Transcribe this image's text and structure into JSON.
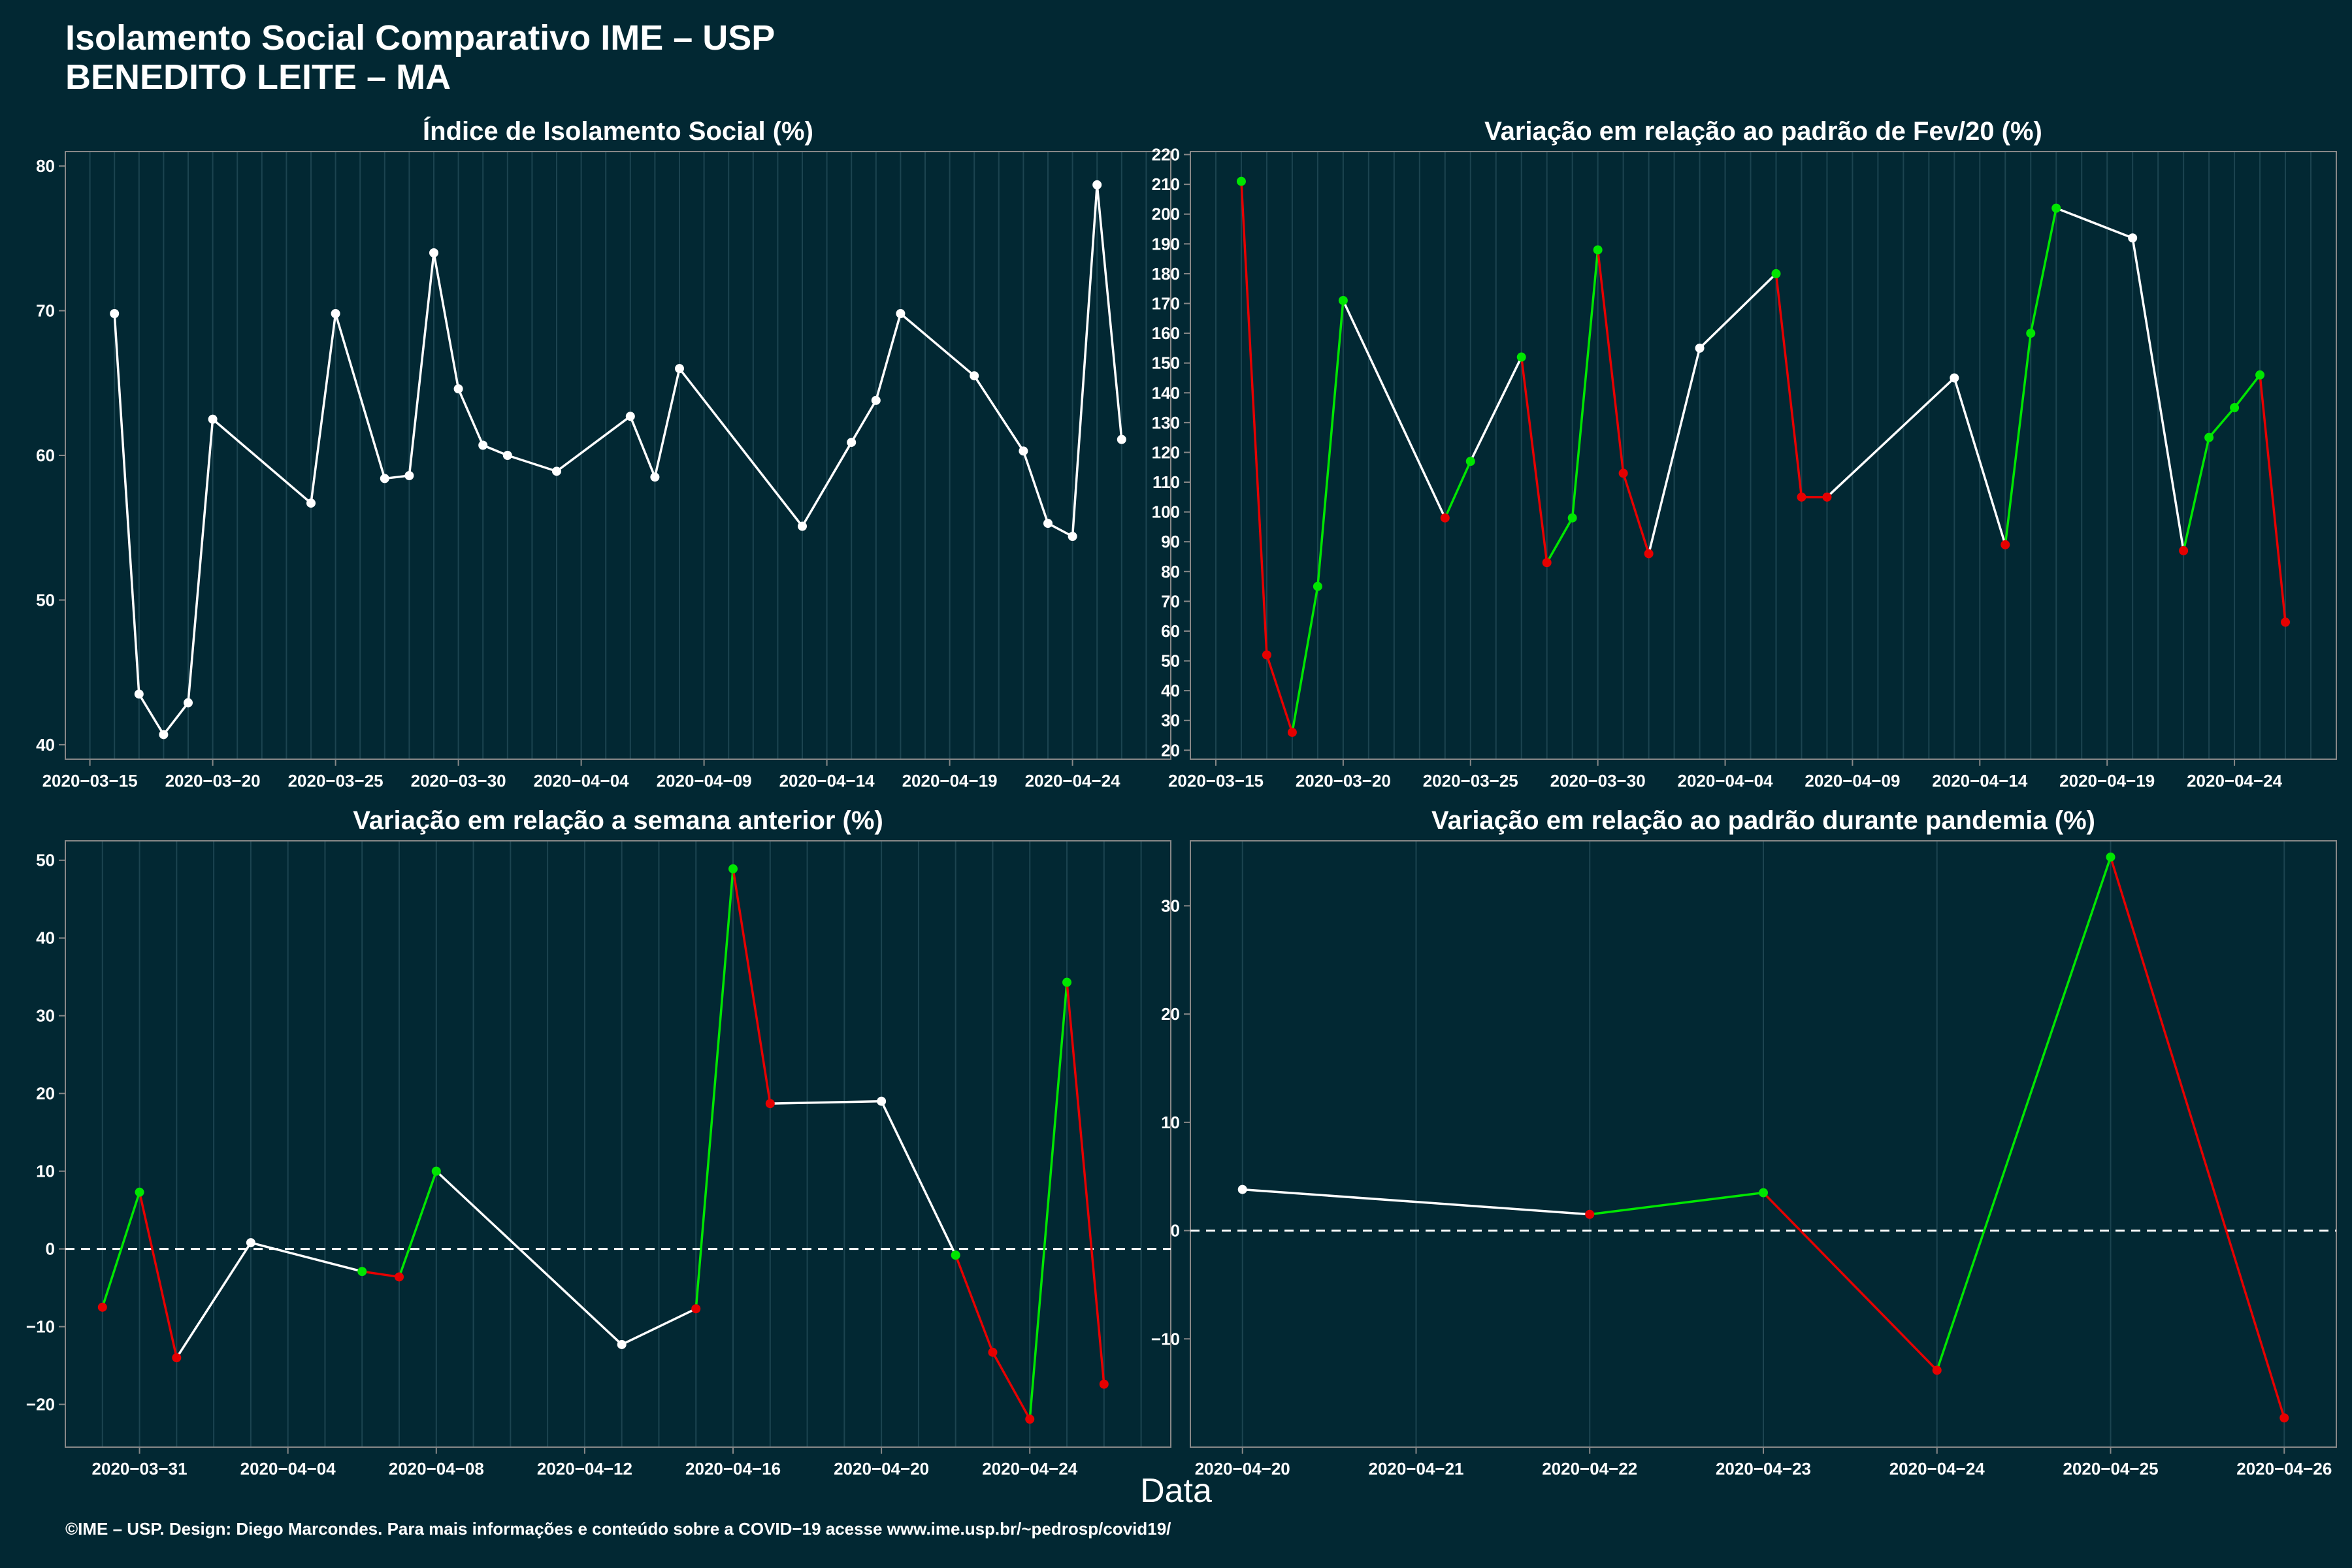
{
  "header": {
    "title": "Isolamento Social Comparativo IME – USP",
    "subtitle": "BENEDITO LEITE – MA"
  },
  "xlabel": "Data",
  "footer": "©IME – USP. Design: Diego Marcondes. Para mais informações e conteúdo sobre a COVID−19 acesse www.ime.usp.br/~pedrosp/covid19/",
  "colors": {
    "background": "#022833",
    "up": "#00e600",
    "down": "#e60000",
    "neutral": "#ffffff",
    "grid": "#1c4450",
    "axis": "#888888"
  },
  "chart_data": [
    {
      "type": "line",
      "title": "Índice de Isolamento Social (%)",
      "xlabel": "Data",
      "x_ticks": [
        "2020−03−15",
        "2020−03−20",
        "2020−03−25",
        "2020−03−30",
        "2020−04−04",
        "2020−04−09",
        "2020−04−14",
        "2020−04−19",
        "2020−04−24"
      ],
      "y_ticks": [
        40,
        50,
        60,
        70,
        80
      ],
      "ylim": [
        39,
        81
      ],
      "xlim": [
        "2020-03-14",
        "2020-04-28"
      ],
      "series": [
        {
          "x": [
            "2020-03-16",
            "2020-03-17",
            "2020-03-18",
            "2020-03-19",
            "2020-03-20",
            "2020-03-24",
            "2020-03-25",
            "2020-03-27",
            "2020-03-28",
            "2020-03-29",
            "2020-03-30",
            "2020-03-31",
            "2020-04-01",
            "2020-04-03",
            "2020-04-06",
            "2020-04-07",
            "2020-04-08",
            "2020-04-13",
            "2020-04-15",
            "2020-04-16",
            "2020-04-17",
            "2020-04-20",
            "2020-04-22",
            "2020-04-23",
            "2020-04-24",
            "2020-04-25",
            "2020-04-26"
          ],
          "y": [
            69.8,
            43.5,
            40.7,
            42.9,
            62.5,
            56.7,
            69.8,
            58.4,
            58.6,
            74.0,
            64.6,
            60.7,
            60.0,
            58.9,
            62.7,
            58.5,
            66.0,
            55.1,
            60.9,
            63.8,
            69.8,
            65.5,
            60.3,
            55.3,
            54.4,
            78.7,
            61.1
          ]
        }
      ]
    },
    {
      "type": "line",
      "title": "Variação em relação ao padrão de Fev/20 (%)",
      "xlabel": "Data",
      "x_ticks": [
        "2020−03−15",
        "2020−03−20",
        "2020−03−25",
        "2020−03−30",
        "2020−04−04",
        "2020−04−09",
        "2020−04−14",
        "2020−04−19",
        "2020−04−24"
      ],
      "y_ticks": [
        20,
        30,
        40,
        50,
        60,
        70,
        80,
        90,
        100,
        110,
        120,
        130,
        140,
        150,
        160,
        170,
        180,
        190,
        200,
        210,
        220
      ],
      "ylim": [
        17,
        221
      ],
      "xlim": [
        "2020-03-14",
        "2020-04-28"
      ],
      "series": [
        {
          "x": [
            "2020-03-16",
            "2020-03-17",
            "2020-03-18",
            "2020-03-19",
            "2020-03-20",
            "2020-03-24",
            "2020-03-25",
            "2020-03-27",
            "2020-03-28",
            "2020-03-29",
            "2020-03-30",
            "2020-03-31",
            "2020-04-01",
            "2020-04-03",
            "2020-04-06",
            "2020-04-07",
            "2020-04-08",
            "2020-04-13",
            "2020-04-15",
            "2020-04-16",
            "2020-04-17",
            "2020-04-20",
            "2020-04-22",
            "2020-04-23",
            "2020-04-24",
            "2020-04-25",
            "2020-04-26"
          ],
          "y": [
            211,
            52,
            26,
            75,
            171,
            98,
            117,
            152,
            83,
            98,
            188,
            113,
            86,
            155,
            180,
            105,
            105,
            145,
            89,
            160,
            202,
            192,
            87,
            125,
            135,
            146,
            63
          ]
        }
      ]
    },
    {
      "type": "line",
      "title": "Variação em relação a semana anterior (%)",
      "xlabel": "Data",
      "x_ticks": [
        "2020−03−31",
        "2020−04−04",
        "2020−04−08",
        "2020−04−12",
        "2020−04−16",
        "2020−04−20",
        "2020−04−24"
      ],
      "y_ticks": [
        -20,
        -10,
        0,
        10,
        20,
        30,
        40,
        50
      ],
      "ylim": [
        -25.5,
        52.5
      ],
      "xlim": [
        "2020-03-29",
        "2020-04-27.8"
      ],
      "reference_line": 0,
      "series": [
        {
          "x": [
            "2020-03-30",
            "2020-03-31",
            "2020-04-01",
            "2020-04-03",
            "2020-04-06",
            "2020-04-07",
            "2020-04-08",
            "2020-04-13",
            "2020-04-15",
            "2020-04-16",
            "2020-04-17",
            "2020-04-20",
            "2020-04-22",
            "2020-04-23",
            "2020-04-24",
            "2020-04-25",
            "2020-04-26"
          ],
          "y": [
            -7.5,
            7.3,
            -14.0,
            0.8,
            -2.9,
            -3.6,
            10.0,
            -12.3,
            -7.7,
            48.9,
            18.7,
            19.0,
            -0.8,
            -13.3,
            -21.9,
            34.3,
            -17.4
          ]
        }
      ]
    },
    {
      "type": "line",
      "title": "Variação em relação ao padrão durante pandemia (%)",
      "xlabel": "Data",
      "x_ticks": [
        "2020−04−20",
        "2020−04−21",
        "2020−04−22",
        "2020−04−23",
        "2020−04−24",
        "2020−04−25",
        "2020−04−26"
      ],
      "y_ticks": [
        -10,
        0,
        10,
        20,
        30
      ],
      "ylim": [
        -20,
        36
      ],
      "xlim": [
        "2020-04-19.7",
        "2020-04-26.3"
      ],
      "reference_line": 0,
      "series": [
        {
          "x": [
            "2020-04-20",
            "2020-04-22",
            "2020-04-23",
            "2020-04-24",
            "2020-04-25",
            "2020-04-26"
          ],
          "y": [
            3.8,
            1.5,
            3.5,
            -12.9,
            34.5,
            -17.3
          ]
        }
      ]
    }
  ]
}
